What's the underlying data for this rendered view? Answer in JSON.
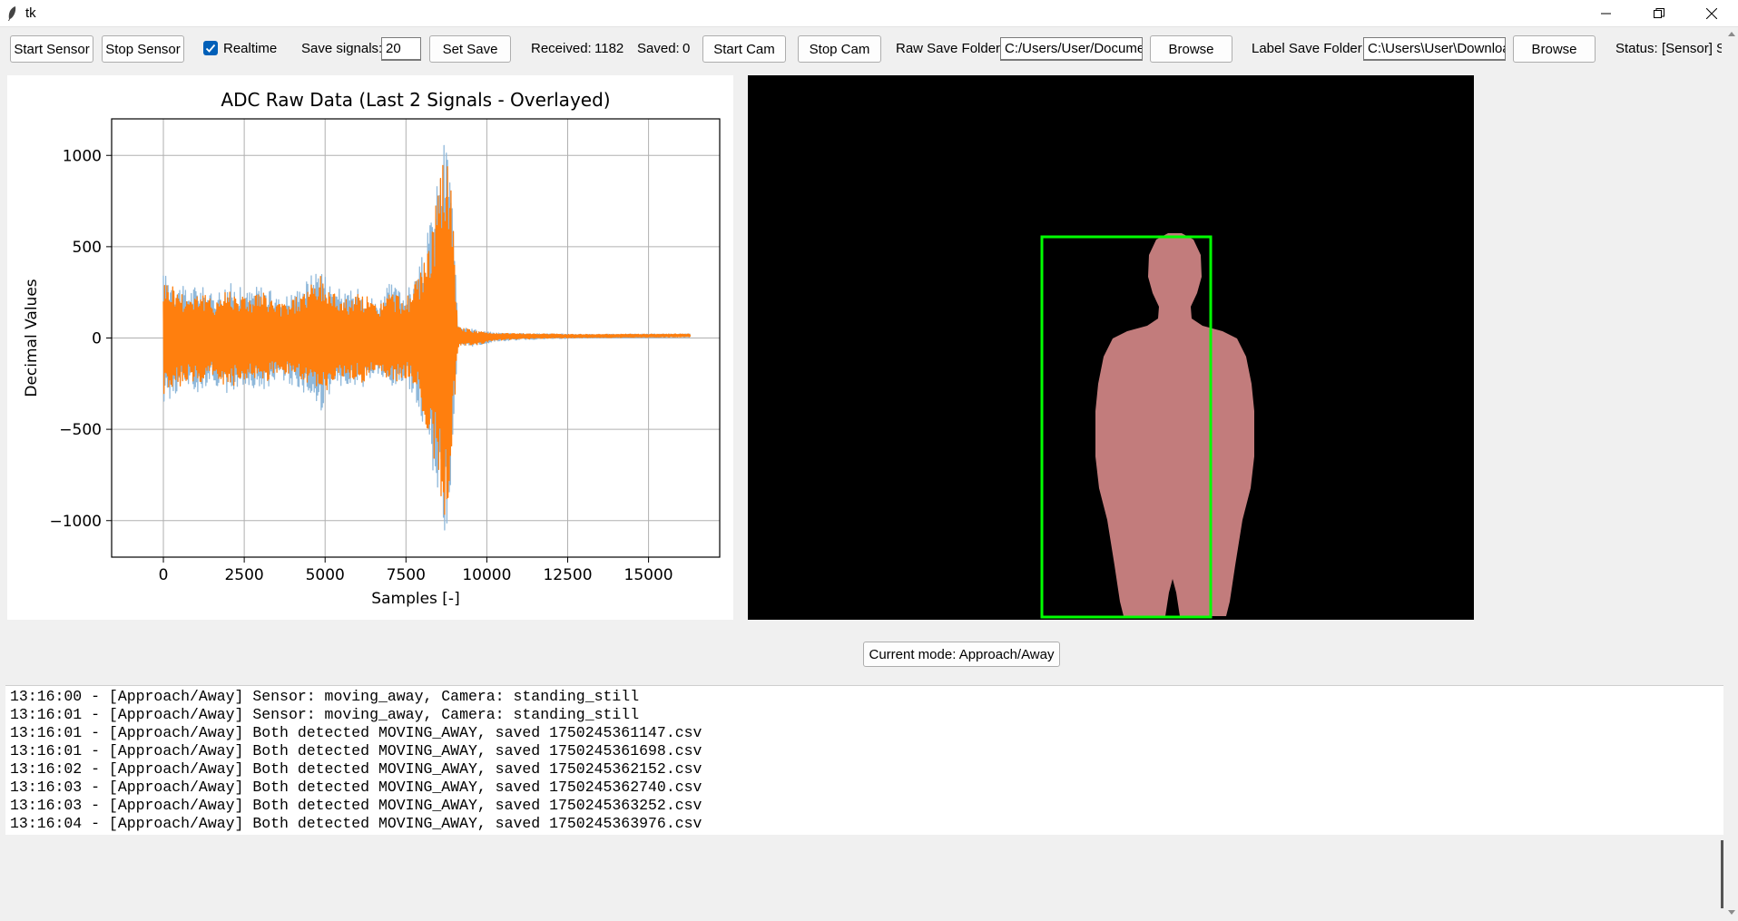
{
  "window": {
    "title": "tk"
  },
  "toolbar": {
    "start_sensor": "Start Sensor",
    "stop_sensor": "Stop Sensor",
    "realtime_label": "Realtime",
    "realtime_checked": true,
    "save_signals_label": "Save signals:",
    "save_signals_value": "20",
    "set_save": "Set Save",
    "received_label": "Received:",
    "received_value": "1182",
    "saved_label": "Saved:",
    "saved_value": "0",
    "start_cam": "Start Cam",
    "stop_cam": "Stop Cam",
    "raw_folder_label": "Raw Save Folder:",
    "raw_folder_value": "C:/Users/User/Docume",
    "browse_raw": "Browse",
    "label_folder_label": "Label Save Folder:",
    "label_folder_value": "C:\\Users\\User\\Downloa",
    "browse_label": "Browse",
    "status_label": "Status:",
    "status_value": "[Sensor] Se"
  },
  "chart_data": {
    "type": "line",
    "title": "ADC Raw Data (Last 2 Signals - Overlayed)",
    "xlabel": "Samples [-]",
    "ylabel": "Decimal Values",
    "xlim": [
      -1600,
      17200
    ],
    "ylim": [
      -1200,
      1200
    ],
    "xticks": [
      0,
      2500,
      5000,
      7500,
      10000,
      12500,
      15000
    ],
    "yticks": [
      -1000,
      -500,
      0,
      500,
      1000
    ],
    "xtick_labels": [
      "0",
      "2500",
      "5000",
      "7500",
      "10000",
      "12500",
      "15000"
    ],
    "ytick_labels": [
      "−1000",
      "−500",
      "0",
      "500",
      "1000"
    ],
    "grid": true,
    "series": [
      {
        "color": "#8fb8da",
        "envelope": {
          "x": [
            0,
            300,
            700,
            1100,
            1500,
            2000,
            2600,
            3000,
            3600,
            4200,
            4600,
            4850,
            5100,
            5600,
            6200,
            6600,
            7000,
            7500,
            7900,
            8200,
            8500,
            8700,
            8850,
            8950,
            9100,
            9400,
            9800,
            10200,
            11000,
            13000,
            16300
          ],
          "upper": [
            360,
            330,
            270,
            300,
            240,
            310,
            260,
            300,
            220,
            280,
            360,
            420,
            320,
            250,
            280,
            200,
            300,
            250,
            380,
            600,
            900,
            1130,
            1100,
            700,
            80,
            60,
            40,
            30,
            25,
            20,
            22
          ],
          "lower": [
            -360,
            -330,
            -270,
            -300,
            -240,
            -310,
            -260,
            -300,
            -220,
            -280,
            -360,
            -430,
            -320,
            -250,
            -280,
            -200,
            -300,
            -250,
            -380,
            -600,
            -900,
            -1080,
            -1000,
            -600,
            -60,
            -50,
            -40,
            -20,
            -10,
            0,
            5
          ]
        }
      },
      {
        "color": "#ff7f0e",
        "envelope": {
          "x": [
            0,
            300,
            700,
            1100,
            1500,
            2000,
            2600,
            3000,
            3600,
            4200,
            4600,
            4850,
            5100,
            5600,
            6200,
            6600,
            7000,
            7500,
            7900,
            8200,
            8500,
            8700,
            8850,
            8950,
            9100,
            9400,
            9800,
            10200,
            11000,
            13000,
            16300
          ],
          "upper": [
            330,
            300,
            240,
            270,
            210,
            280,
            230,
            260,
            190,
            240,
            300,
            340,
            280,
            220,
            250,
            180,
            260,
            220,
            340,
            520,
            800,
            1050,
            1060,
            650,
            60,
            50,
            35,
            28,
            24,
            20,
            22
          ],
          "lower": [
            -330,
            -300,
            -240,
            -270,
            -210,
            -280,
            -230,
            -260,
            -190,
            -240,
            -300,
            -350,
            -280,
            -220,
            -250,
            -180,
            -260,
            -220,
            -340,
            -520,
            -800,
            -1000,
            -1020,
            -560,
            -50,
            -45,
            -35,
            -15,
            -5,
            2,
            6
          ]
        }
      }
    ]
  },
  "camera": {
    "segment_color": "#c27c7c",
    "box_color": "#00ff00"
  },
  "mode": {
    "label": "Current mode: Approach/Away"
  },
  "log": {
    "lines": [
      "13:16:00 - [Approach/Away] Sensor: moving_away, Camera: standing_still",
      "13:16:01 - [Approach/Away] Sensor: moving_away, Camera: standing_still",
      "13:16:01 - [Approach/Away] Both detected MOVING_AWAY, saved 1750245361147.csv",
      "13:16:01 - [Approach/Away] Both detected MOVING_AWAY, saved 1750245361698.csv",
      "13:16:02 - [Approach/Away] Both detected MOVING_AWAY, saved 1750245362152.csv",
      "13:16:03 - [Approach/Away] Both detected MOVING_AWAY, saved 1750245362740.csv",
      "13:16:03 - [Approach/Away] Both detected MOVING_AWAY, saved 1750245363252.csv",
      "13:16:04 - [Approach/Away] Both detected MOVING_AWAY, saved 1750245363976.csv"
    ]
  }
}
